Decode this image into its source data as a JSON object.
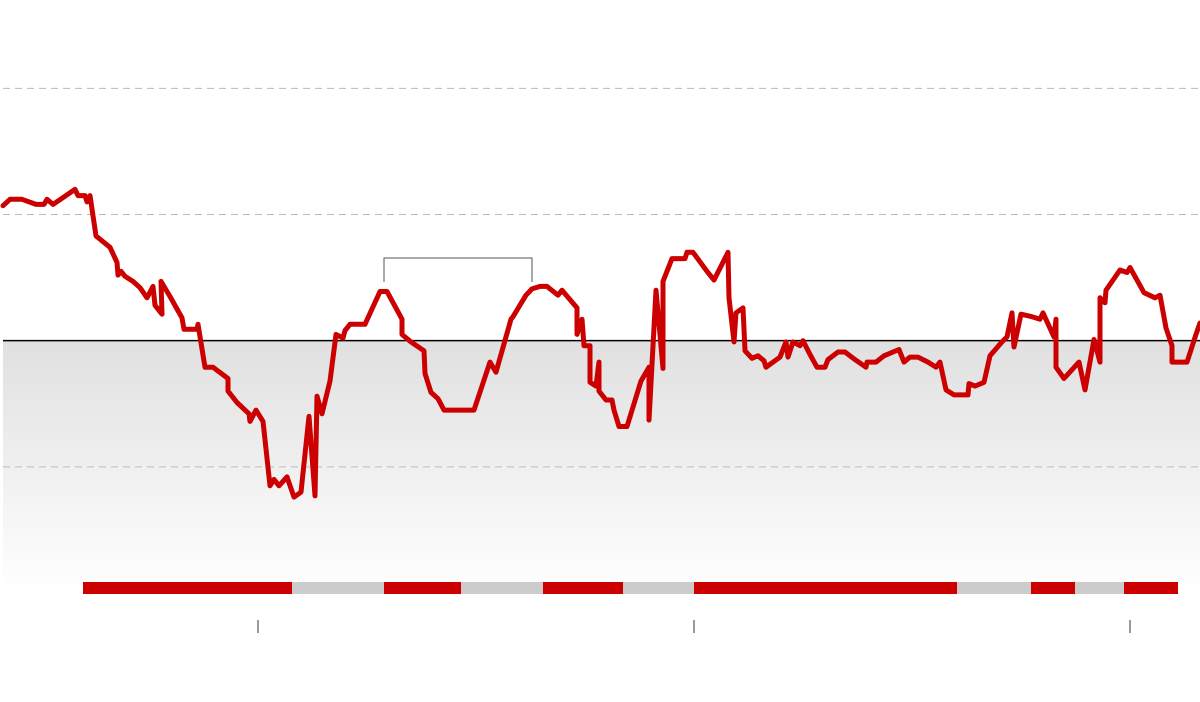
{
  "chart_data": {
    "type": "line",
    "x": [
      3,
      10,
      22,
      36,
      44,
      47,
      53,
      66,
      75,
      78,
      85,
      87,
      90,
      96,
      110,
      117,
      118,
      121,
      125,
      133,
      140,
      147,
      153,
      155,
      162,
      161,
      170,
      182,
      184,
      197,
      198,
      205,
      213,
      228,
      228,
      237,
      249,
      250,
      256,
      263,
      270,
      274,
      279,
      287,
      294,
      301,
      309,
      315,
      317,
      322,
      330,
      336,
      343,
      345,
      350,
      365,
      380,
      387,
      402,
      402,
      411,
      424,
      425,
      431,
      438,
      444,
      474,
      490,
      496,
      511,
      513,
      526,
      532,
      540,
      547,
      558,
      562,
      577,
      577,
      582,
      584,
      590,
      590,
      596,
      599,
      599,
      606,
      612,
      614,
      619,
      627,
      641,
      649,
      649,
      656,
      663,
      663,
      672,
      685,
      687,
      693,
      707,
      714,
      728,
      729,
      734,
      736,
      743,
      745,
      752,
      758,
      764,
      766,
      780,
      786,
      788,
      793,
      800,
      803,
      810,
      817,
      825,
      828,
      838,
      845,
      855,
      866,
      867,
      876,
      884,
      899,
      904,
      910,
      918,
      928,
      936,
      940,
      946,
      954,
      968,
      969,
      975,
      984,
      990,
      1002,
      1007,
      1012,
      1014,
      1021,
      1032,
      1040,
      1043,
      1054,
      1056,
      1056,
      1064,
      1079,
      1085,
      1094,
      1100,
      1100,
      1105,
      1106,
      1120,
      1127,
      1130,
      1144,
      1155,
      1160,
      1166,
      1172,
      1172,
      1187,
      1196,
      1200
    ],
    "series": [
      {
        "color": "#cc0000",
        "values": [
          1.07,
          1.12,
          1.12,
          1.08,
          1.08,
          1.12,
          1.08,
          1.15,
          1.2,
          1.15,
          1.15,
          1.1,
          1.15,
          0.83,
          0.74,
          0.62,
          0.52,
          0.55,
          0.51,
          0.47,
          0.42,
          0.34,
          0.43,
          0.28,
          0.21,
          0.47,
          0.35,
          0.18,
          0.09,
          0.09,
          0.13,
          -0.21,
          -0.21,
          -0.3,
          -0.4,
          -0.49,
          -0.58,
          -0.64,
          -0.55,
          -0.64,
          -1.15,
          -1.1,
          -1.15,
          -1.08,
          -1.24,
          -1.2,
          -0.6,
          -1.23,
          -0.44,
          -0.58,
          -0.32,
          0.05,
          0.02,
          0.08,
          0.13,
          0.13,
          0.39,
          0.39,
          0.17,
          0.05,
          -0.01,
          -0.08,
          -0.26,
          -0.41,
          -0.46,
          -0.55,
          -0.55,
          -0.17,
          -0.25,
          0.17,
          0.19,
          0.36,
          0.41,
          0.43,
          0.43,
          0.36,
          0.4,
          0.26,
          0.05,
          0.17,
          -0.04,
          -0.04,
          -0.33,
          -0.36,
          -0.17,
          -0.4,
          -0.47,
          -0.47,
          -0.55,
          -0.68,
          -0.68,
          -0.32,
          -0.21,
          -0.63,
          0.4,
          -0.22,
          0.47,
          0.65,
          0.65,
          0.7,
          0.7,
          0.55,
          0.48,
          0.7,
          0.34,
          -0.01,
          0.22,
          0.26,
          -0.08,
          -0.14,
          -0.12,
          -0.16,
          -0.21,
          -0.13,
          -0.01,
          -0.13,
          -0.01,
          -0.04,
          0,
          -0.11,
          -0.21,
          -0.21,
          -0.15,
          -0.09,
          -0.09,
          -0.15,
          -0.21,
          -0.17,
          -0.17,
          -0.12,
          -0.07,
          -0.17,
          -0.13,
          -0.13,
          -0.17,
          -0.21,
          -0.17,
          -0.39,
          -0.43,
          -0.43,
          -0.34,
          -0.36,
          -0.33,
          -0.12,
          -0.01,
          0.03,
          0.22,
          -0.05,
          0.21,
          0.19,
          0.17,
          0.22,
          0.03,
          0.17,
          -0.21,
          -0.3,
          -0.17,
          -0.39,
          0.01,
          -0.17,
          0.34,
          0.3,
          0.4,
          0.56,
          0.54,
          0.58,
          0.38,
          0.34,
          0.36,
          0.1,
          -0.04,
          -0.17,
          -0.17,
          0.05,
          0.14
        ]
      }
    ],
    "xlim": [
      0,
      1200
    ],
    "xticks": [
      258,
      694,
      1130
    ],
    "ylim": [
      -2,
      2.7
    ],
    "yticks": [
      -1,
      0,
      1,
      2
    ],
    "grid": true,
    "periods": [
      {
        "start": 83,
        "end": 292,
        "color": "#cc0000"
      },
      {
        "start": 292,
        "end": 384,
        "color": "#cccccc"
      },
      {
        "start": 384,
        "end": 461,
        "color": "#cc0000"
      },
      {
        "start": 461,
        "end": 543,
        "color": "#cccccc"
      },
      {
        "start": 543,
        "end": 623,
        "color": "#cc0000"
      },
      {
        "start": 623,
        "end": 694,
        "color": "#cccccc"
      },
      {
        "start": 694,
        "end": 957,
        "color": "#cc0000"
      },
      {
        "start": 957,
        "end": 1031,
        "color": "#cccccc"
      },
      {
        "start": 1031,
        "end": 1075,
        "color": "#cc0000"
      },
      {
        "start": 1075,
        "end": 1124,
        "color": "#cccccc"
      },
      {
        "start": 1124,
        "end": 1178,
        "color": "#cc0000"
      }
    ]
  }
}
